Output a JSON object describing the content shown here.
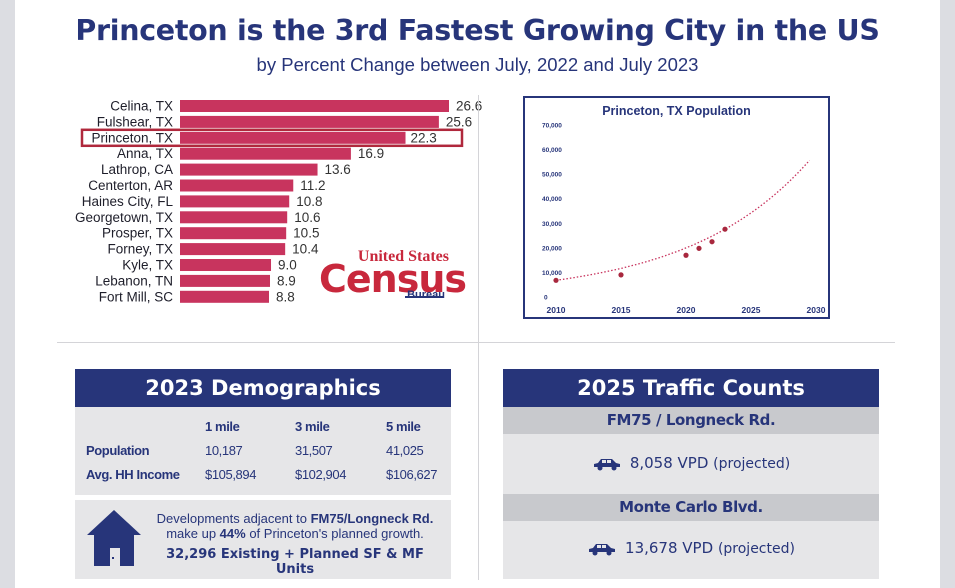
{
  "title": "Princeton is the 3rd Fastest Growing City in the US",
  "subtitle": "by Percent Change between July, 2022 and July 2023",
  "census_logo": {
    "line1": "United States",
    "line2": "Census",
    "line3": "Bureau",
    "color": "#c8283c"
  },
  "colors": {
    "navy": "#27357a",
    "bar": "#c8345e",
    "highlight_border": "#b0283c",
    "panel_gray": "#e6e6e8",
    "subhead_gray": "#c8c9cd"
  },
  "chart_data": [
    {
      "type": "bar",
      "orientation": "horizontal",
      "categories": [
        "Celina, TX",
        "Fulshear, TX",
        "Princeton, TX",
        "Anna, TX",
        "Lathrop, CA",
        "Centerton, AR",
        "Haines City, FL",
        "Georgetown, TX",
        "Prosper, TX",
        "Forney, TX",
        "Kyle, TX",
        "Lebanon, TN",
        "Fort Mill, SC"
      ],
      "values": [
        26.6,
        25.6,
        22.3,
        16.9,
        13.6,
        11.2,
        10.8,
        10.6,
        10.5,
        10.4,
        9.0,
        8.9,
        8.8
      ],
      "value_labels": [
        "26.6",
        "25.6",
        "22.3",
        "16.9",
        "13.6",
        "11.2",
        "10.8",
        "10.6",
        "10.5",
        "10.4",
        "9.0",
        "8.9",
        "8.8"
      ],
      "highlight": "Princeton, TX",
      "xlim": [
        0,
        30
      ]
    },
    {
      "type": "line",
      "title": "Princeton, TX Population",
      "points": [
        {
          "x": 2010,
          "y": 6800
        },
        {
          "x": 2015,
          "y": 9000
        },
        {
          "x": 2020,
          "y": 17000
        },
        {
          "x": 2021,
          "y": 19800
        },
        {
          "x": 2022,
          "y": 22500
        },
        {
          "x": 2023,
          "y": 27600
        }
      ],
      "trendline": "exponential, dotted",
      "xlim": [
        2010,
        2030
      ],
      "ylim": [
        0,
        70000
      ],
      "x_ticks": [
        "2010",
        "2015",
        "2020",
        "2025",
        "2030"
      ],
      "y_ticks": [
        "0",
        "10,000",
        "20,000",
        "30,000",
        "40,000",
        "50,000",
        "60,000",
        "70,000"
      ]
    }
  ],
  "demographics": {
    "title": "2023 Demographics",
    "columns": [
      "1 mile",
      "3 mile",
      "5 mile"
    ],
    "rows": [
      {
        "label": "Population",
        "values": [
          "10,187",
          "31,507",
          "41,025"
        ]
      },
      {
        "label": "Avg. HH Income",
        "values": [
          "$105,894",
          "$102,904",
          "$106,627"
        ]
      }
    ],
    "note": {
      "line1_pre": "Developments adjacent to ",
      "line1_bold": "FM75/Longneck Rd.",
      "line2_pre": "make up ",
      "line2_bold": "44%",
      "line2_post": " of Princeton's planned growth.",
      "line3": "32,296 Existing + Planned SF & MF Units"
    }
  },
  "traffic": {
    "title": "2025 Traffic Counts",
    "roads": [
      {
        "name": "FM75 / Longneck Rd.",
        "count": "8,058 VPD",
        "note": "(projected)"
      },
      {
        "name": "Monte Carlo Blvd.",
        "count": "13,678 VPD",
        "note": "(projected)"
      }
    ]
  }
}
